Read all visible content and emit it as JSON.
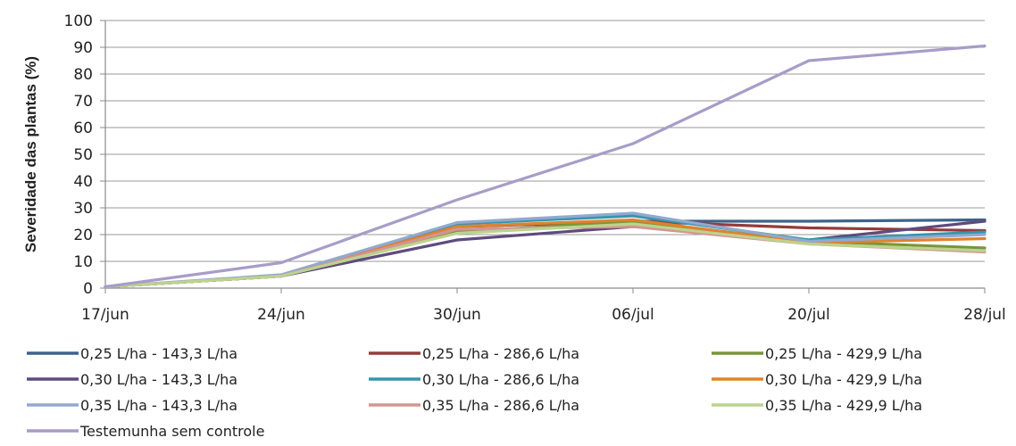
{
  "chart_data": {
    "type": "line",
    "title": "",
    "xlabel": "",
    "ylabel": "Severidade das plantas (%)",
    "categories": [
      "17/jun",
      "24/jun",
      "30/jun",
      "06/jul",
      "20/jul",
      "28/jul"
    ],
    "ylim": [
      0,
      100
    ],
    "yticks": [
      0,
      10,
      20,
      30,
      40,
      50,
      60,
      70,
      80,
      90,
      100
    ],
    "grid": true,
    "legend_position": "bottom",
    "series": [
      {
        "name": "0,25 L/ha - 143,3 L/ha",
        "color": "#3e6389",
        "values": [
          0.5,
          4.5,
          23,
          25,
          25,
          25.5
        ]
      },
      {
        "name": "0,25 L/ha - 286,6 L/ha",
        "color": "#943b3a",
        "values": [
          0.5,
          4.5,
          23,
          25,
          22.5,
          21.5
        ]
      },
      {
        "name": "0,25 L/ha - 429,9 L/ha",
        "color": "#77963b",
        "values": [
          0.5,
          4.5,
          21,
          25,
          17.5,
          15
        ]
      },
      {
        "name": "0,30 L/ha - 143,3 L/ha",
        "color": "#5f4a7d",
        "values": [
          0.5,
          4.5,
          18,
          23,
          18,
          25
        ]
      },
      {
        "name": "0,30 L/ha - 286,6 L/ha",
        "color": "#3596ad",
        "values": [
          0.5,
          4.5,
          24,
          27,
          18,
          21
        ]
      },
      {
        "name": "0,30 L/ha - 429,9 L/ha",
        "color": "#e0822f",
        "values": [
          0.5,
          4.5,
          23,
          25.5,
          17,
          18.5
        ]
      },
      {
        "name": "0,35 L/ha - 143,3 L/ha",
        "color": "#92a9cf",
        "values": [
          0.5,
          5,
          24.5,
          28,
          17.5,
          20
        ]
      },
      {
        "name": "0,35 L/ha - 286,6 L/ha",
        "color": "#d49592",
        "values": [
          0.5,
          4.5,
          22,
          23,
          16.5,
          13.5
        ]
      },
      {
        "name": "0,35 L/ha - 429,9 L/ha",
        "color": "#bcd38f",
        "values": [
          0.5,
          4.5,
          20.5,
          24,
          16.5,
          14
        ]
      },
      {
        "name": "Testemunha sem controle",
        "color": "#a89cc8",
        "values": [
          0.5,
          9.5,
          33,
          54,
          85,
          90.5
        ]
      }
    ]
  }
}
